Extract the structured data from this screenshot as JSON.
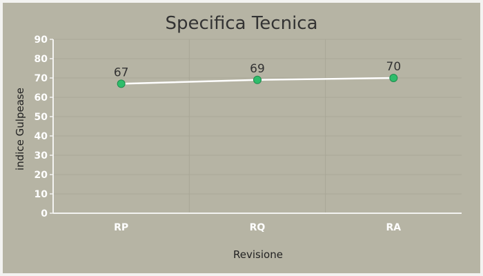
{
  "colors": {
    "background": "#b6b4a4",
    "line": "#ffffff",
    "point_fill": "#2ebd6b",
    "point_stroke": "#1f8a4c",
    "axis": "#f3f3f1",
    "grid": "#a9a797",
    "title_text": "#333333",
    "tick_text": "#ffffff",
    "label_text": "#222222"
  },
  "chart_data": {
    "type": "line",
    "title": "Specifica Tecnica",
    "xlabel": "Revisione",
    "ylabel": "indice Gulpease",
    "categories": [
      "RP",
      "RQ",
      "RA"
    ],
    "series": [
      {
        "values": [
          67,
          69,
          70
        ]
      }
    ],
    "data_labels": [
      "67",
      "69",
      "70"
    ],
    "ylim": [
      0,
      90
    ],
    "yticks": [
      "0",
      "10",
      "20",
      "30",
      "40",
      "50",
      "60",
      "70",
      "80",
      "90"
    ],
    "grid": true,
    "legend": "none"
  }
}
